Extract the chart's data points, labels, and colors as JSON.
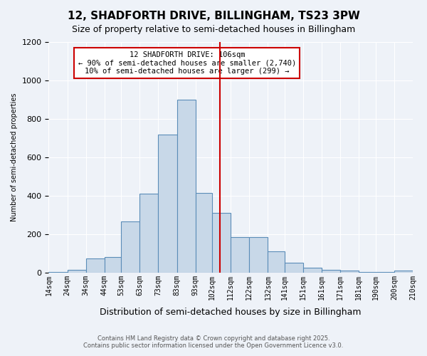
{
  "title": "12, SHADFORTH DRIVE, BILLINGHAM, TS23 3PW",
  "subtitle": "Size of property relative to semi-detached houses in Billingham",
  "xlabel": "Distribution of semi-detached houses by size in Billingham",
  "ylabel": "Number of semi-detached properties",
  "footer_line1": "Contains HM Land Registry data © Crown copyright and database right 2025.",
  "footer_line2": "Contains public sector information licensed under the Open Government Licence v3.0.",
  "annotation_title": "12 SHADFORTH DRIVE: 106sqm",
  "annotation_line1": "← 90% of semi-detached houses are smaller (2,740)",
  "annotation_line2": "10% of semi-detached houses are larger (299) →",
  "property_size": 106,
  "vline_x": 106,
  "bin_edges": [
    14,
    24,
    34,
    44,
    53,
    63,
    73,
    83,
    93,
    102,
    112,
    122,
    132,
    141,
    151,
    161,
    171,
    181,
    190,
    200,
    210
  ],
  "bin_labels": [
    "14sqm",
    "24sqm",
    "34sqm",
    "44sqm",
    "53sqm",
    "63sqm",
    "73sqm",
    "83sqm",
    "93sqm",
    "102sqm",
    "112sqm",
    "122sqm",
    "132sqm",
    "141sqm",
    "151sqm",
    "161sqm",
    "171sqm",
    "181sqm",
    "190sqm",
    "200sqm",
    "210sqm"
  ],
  "bar_heights": [
    2,
    15,
    75,
    80,
    265,
    410,
    720,
    900,
    415,
    310,
    185,
    185,
    110,
    50,
    25,
    15,
    10,
    5,
    2,
    10
  ],
  "bar_color": "#c8d8e8",
  "bar_edge_color": "#5b8db8",
  "vline_color": "#cc0000",
  "bg_color": "#eef2f8",
  "ylim": [
    0,
    1200
  ],
  "yticks": [
    0,
    200,
    400,
    600,
    800,
    1000,
    1200
  ],
  "annotation_box_color": "#cc0000",
  "annotation_bg": "#ffffff"
}
